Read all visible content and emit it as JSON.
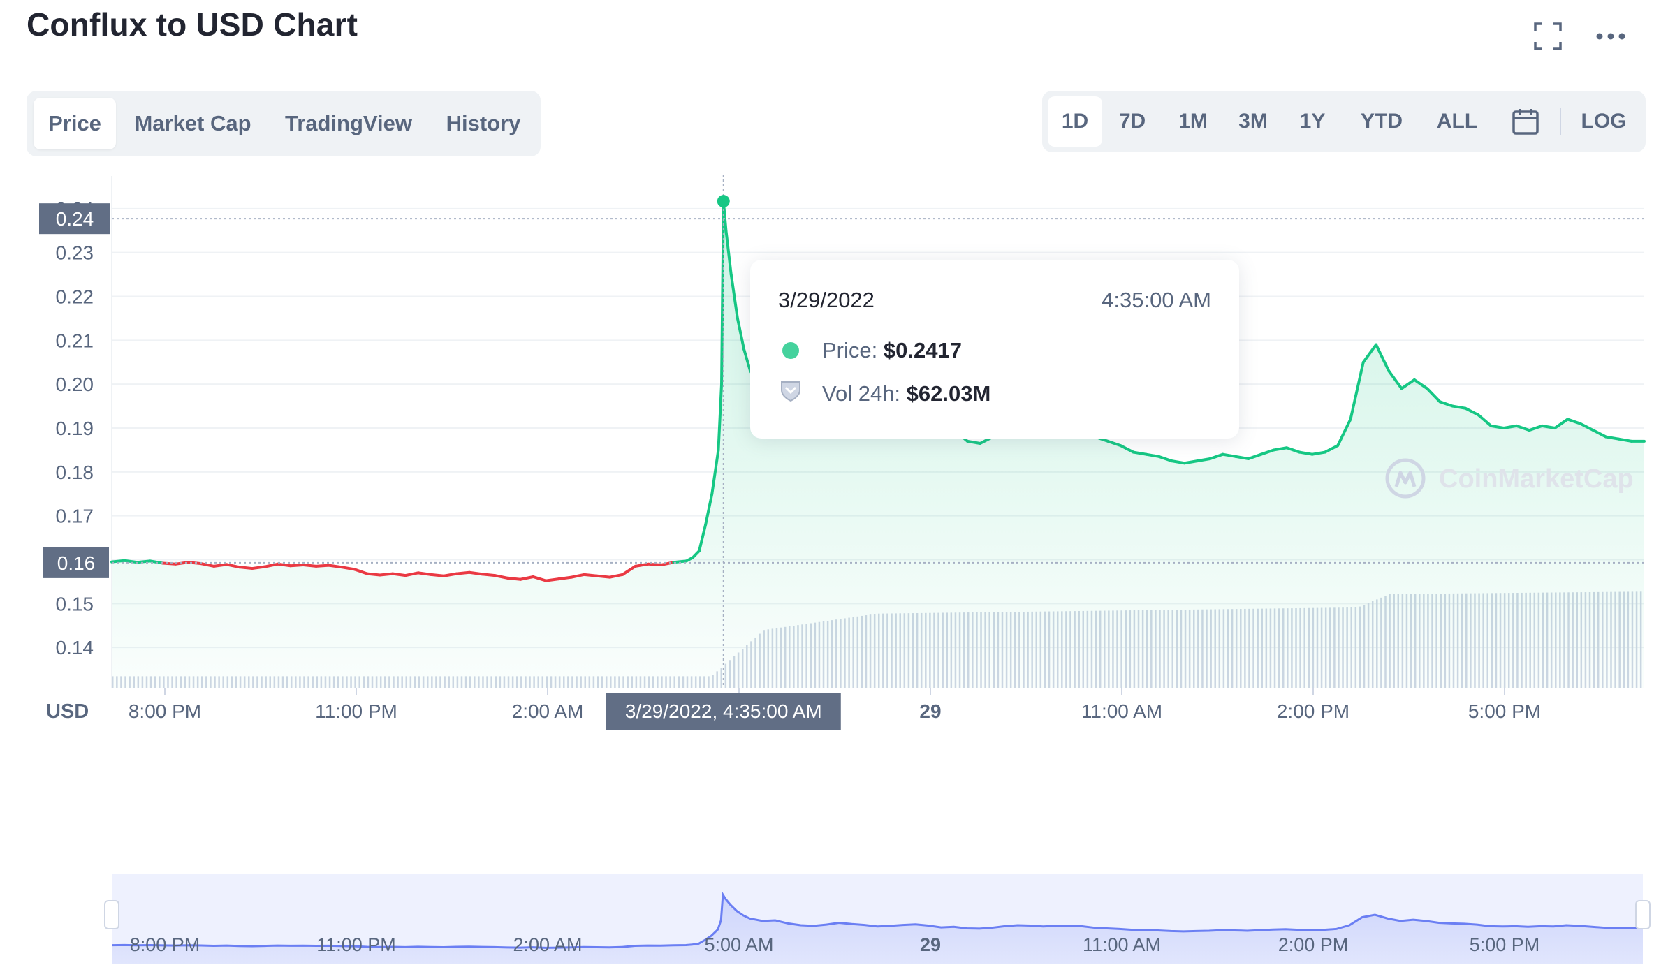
{
  "header": {
    "title": "Conflux to USD Chart",
    "fullscreen_icon": "fullscreen-icon",
    "more_icon": "more-horizontal-icon"
  },
  "tabs": [
    {
      "label": "Price",
      "active": true
    },
    {
      "label": "Market Cap",
      "active": false
    },
    {
      "label": "TradingView",
      "active": false
    },
    {
      "label": "History",
      "active": false
    }
  ],
  "ranges": [
    {
      "label": "1D",
      "active": true
    },
    {
      "label": "7D"
    },
    {
      "label": "1M"
    },
    {
      "label": "3M"
    },
    {
      "label": "1Y"
    },
    {
      "label": "YTD"
    },
    {
      "label": "ALL"
    }
  ],
  "calendar_icon": "calendar-icon",
  "log_label": "LOG",
  "tooltip": {
    "date": "3/29/2022",
    "time": "4:35:00 AM",
    "price_label": "Price:",
    "price_value": "$0.2417",
    "vol_label": "Vol 24h:",
    "vol_value": "$62.03M"
  },
  "watermark": "CoinMarketCap",
  "colors": {
    "up": "#16c784",
    "down": "#ea3943",
    "volume": "#cfd6e4",
    "navigator": "#6b7ff3"
  },
  "chart_data": {
    "type": "line",
    "currency_label": "USD",
    "y_ticks": [
      "0.14",
      "0.15",
      "0.16",
      "0.17",
      "0.18",
      "0.19",
      "0.20",
      "0.21",
      "0.22",
      "0.23",
      "0.24"
    ],
    "ylim": [
      0.137,
      0.243
    ],
    "x_ticks": [
      "8:00 PM",
      "11:00 PM",
      "2:00 AM",
      "5:00 AM",
      "29",
      "11:00 AM",
      "2:00 PM",
      "5:00 PM"
    ],
    "navigator_ticks": [
      "8:00 PM",
      "11:00 PM",
      "2:00 AM",
      "5:00 AM",
      "29",
      "11:00 AM",
      "2:00 PM",
      "5:00 PM"
    ],
    "baseline_label": "0.16",
    "baseline_value": 0.1593,
    "crosshair_price_label": "0.24",
    "crosshair_price": 0.2417,
    "crosshair_time_label": "3/29/2022, 4:35:00 AM",
    "crosshair_hour": 9.58,
    "hour_range": [
      0,
      24
    ],
    "series": [
      {
        "name": "Price",
        "points": [
          [
            0,
            0.1595
          ],
          [
            0.2,
            0.1598
          ],
          [
            0.4,
            0.1594
          ],
          [
            0.6,
            0.1597
          ],
          [
            0.8,
            0.1592
          ],
          [
            1,
            0.159
          ],
          [
            1.2,
            0.1594
          ],
          [
            1.4,
            0.1591
          ],
          [
            1.6,
            0.1585
          ],
          [
            1.8,
            0.1589
          ],
          [
            2,
            0.1583
          ],
          [
            2.2,
            0.158
          ],
          [
            2.4,
            0.1584
          ],
          [
            2.6,
            0.159
          ],
          [
            2.8,
            0.1586
          ],
          [
            3,
            0.1588
          ],
          [
            3.2,
            0.1585
          ],
          [
            3.4,
            0.1587
          ],
          [
            3.6,
            0.1583
          ],
          [
            3.8,
            0.1578
          ],
          [
            4,
            0.1568
          ],
          [
            4.2,
            0.1565
          ],
          [
            4.4,
            0.1568
          ],
          [
            4.6,
            0.1564
          ],
          [
            4.8,
            0.157
          ],
          [
            5,
            0.1566
          ],
          [
            5.2,
            0.1563
          ],
          [
            5.4,
            0.1568
          ],
          [
            5.6,
            0.1571
          ],
          [
            5.8,
            0.1567
          ],
          [
            6,
            0.1564
          ],
          [
            6.2,
            0.1558
          ],
          [
            6.4,
            0.1555
          ],
          [
            6.6,
            0.1561
          ],
          [
            6.8,
            0.1552
          ],
          [
            7,
            0.1556
          ],
          [
            7.2,
            0.156
          ],
          [
            7.4,
            0.1566
          ],
          [
            7.6,
            0.1563
          ],
          [
            7.8,
            0.156
          ],
          [
            8,
            0.1566
          ],
          [
            8.2,
            0.1585
          ],
          [
            8.4,
            0.159
          ],
          [
            8.6,
            0.1588
          ],
          [
            8.8,
            0.1594
          ],
          [
            9,
            0.1597
          ],
          [
            9.1,
            0.1605
          ],
          [
            9.2,
            0.162
          ],
          [
            9.3,
            0.168
          ],
          [
            9.4,
            0.175
          ],
          [
            9.5,
            0.185
          ],
          [
            9.55,
            0.2
          ],
          [
            9.58,
            0.2417
          ],
          [
            9.62,
            0.235
          ],
          [
            9.7,
            0.225
          ],
          [
            9.8,
            0.215
          ],
          [
            9.9,
            0.208
          ],
          [
            10,
            0.203
          ],
          [
            10.2,
            0.199
          ],
          [
            10.4,
            0.2
          ],
          [
            10.6,
            0.195
          ],
          [
            10.8,
            0.192
          ],
          [
            11,
            0.191
          ],
          [
            11.2,
            0.193
          ],
          [
            11.4,
            0.196
          ],
          [
            11.6,
            0.194
          ],
          [
            11.8,
            0.1925
          ],
          [
            12,
            0.19
          ],
          [
            12.2,
            0.191
          ],
          [
            12.4,
            0.1925
          ],
          [
            12.6,
            0.1935
          ],
          [
            12.8,
            0.1915
          ],
          [
            13,
            0.1885
          ],
          [
            13.2,
            0.1895
          ],
          [
            13.4,
            0.187
          ],
          [
            13.6,
            0.1865
          ],
          [
            13.8,
            0.188
          ],
          [
            14,
            0.1905
          ],
          [
            14.2,
            0.192
          ],
          [
            14.4,
            0.1915
          ],
          [
            14.6,
            0.19
          ],
          [
            14.8,
            0.191
          ],
          [
            15,
            0.1915
          ],
          [
            15.2,
            0.1905
          ],
          [
            15.4,
            0.188
          ],
          [
            15.6,
            0.187
          ],
          [
            15.8,
            0.186
          ],
          [
            16,
            0.1845
          ],
          [
            16.2,
            0.184
          ],
          [
            16.4,
            0.1835
          ],
          [
            16.6,
            0.1825
          ],
          [
            16.8,
            0.182
          ],
          [
            17,
            0.1825
          ],
          [
            17.2,
            0.183
          ],
          [
            17.4,
            0.184
          ],
          [
            17.6,
            0.1835
          ],
          [
            17.8,
            0.183
          ],
          [
            18,
            0.184
          ],
          [
            18.2,
            0.185
          ],
          [
            18.4,
            0.1855
          ],
          [
            18.6,
            0.1845
          ],
          [
            18.8,
            0.184
          ],
          [
            19,
            0.1845
          ],
          [
            19.2,
            0.186
          ],
          [
            19.4,
            0.192
          ],
          [
            19.6,
            0.205
          ],
          [
            19.8,
            0.209
          ],
          [
            20,
            0.203
          ],
          [
            20.2,
            0.199
          ],
          [
            20.4,
            0.201
          ],
          [
            20.6,
            0.199
          ],
          [
            20.8,
            0.196
          ],
          [
            21,
            0.195
          ],
          [
            21.2,
            0.1945
          ],
          [
            21.4,
            0.193
          ],
          [
            21.6,
            0.1905
          ],
          [
            21.8,
            0.19
          ],
          [
            22,
            0.1905
          ],
          [
            22.2,
            0.1895
          ],
          [
            22.4,
            0.1905
          ],
          [
            22.6,
            0.19
          ],
          [
            22.8,
            0.192
          ],
          [
            23,
            0.191
          ],
          [
            23.2,
            0.1895
          ],
          [
            23.4,
            0.188
          ],
          [
            23.6,
            0.1875
          ],
          [
            23.8,
            0.187
          ],
          [
            24,
            0.187
          ]
        ]
      }
    ]
  }
}
